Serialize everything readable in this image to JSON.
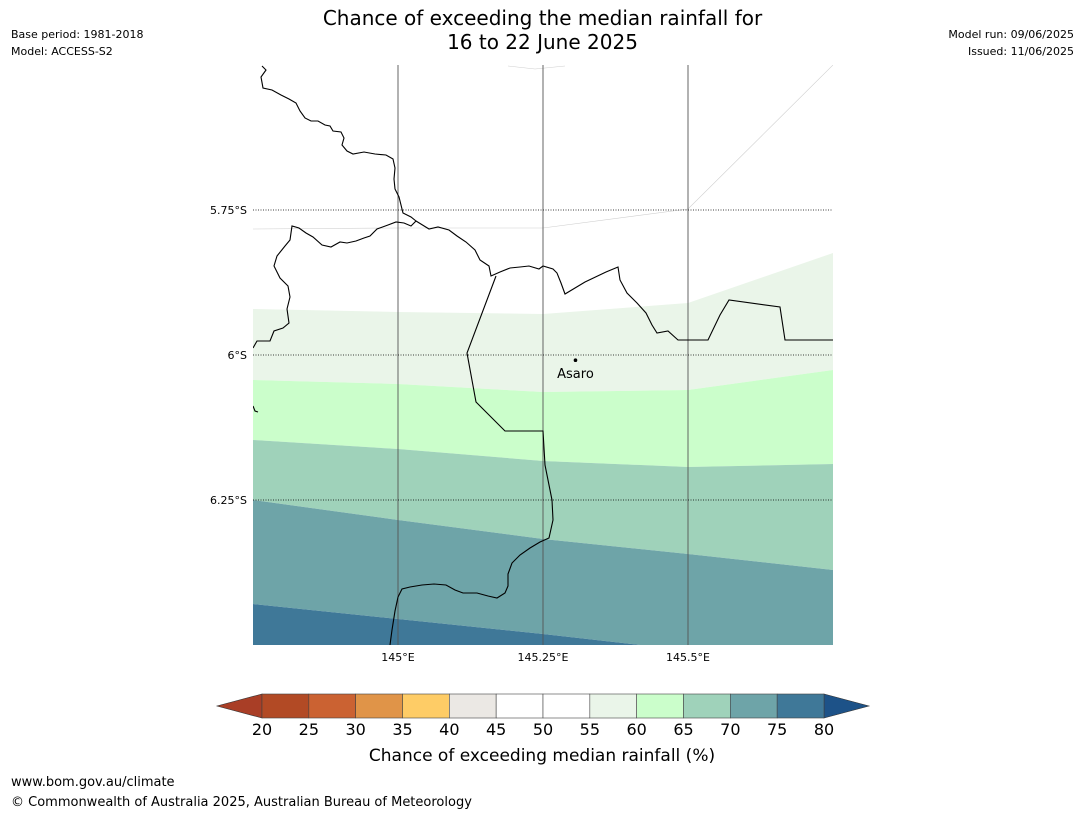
{
  "header": {
    "title_line1": "Chance of exceeding the median rainfall for",
    "title_line2": "16 to 22 June 2025",
    "base_period": "Base period: 1981-2018",
    "model": "Model: ACCESS-S2",
    "model_run": "Model run: 09/06/2025",
    "issued": "Issued: 11/06/2025"
  },
  "chart_data": {
    "type": "heatmap",
    "map_extent": {
      "lon": [
        144.75,
        145.75
      ],
      "lat": [
        -5.5,
        -6.5
      ]
    },
    "lat_ticks": [
      {
        "value": -5.75,
        "label": "5.75°S"
      },
      {
        "value": -6.0,
        "label": "6°S"
      },
      {
        "value": -6.25,
        "label": "6.25°S"
      }
    ],
    "lon_ticks": [
      {
        "value": 145.0,
        "label": "145°E"
      },
      {
        "value": 145.25,
        "label": "145.25°E"
      },
      {
        "value": 145.5,
        "label": "145.5°E"
      }
    ],
    "place": {
      "name": "Asaro",
      "lon": 145.306,
      "lat": -6.009
    },
    "colorbar": {
      "label": "Chance of exceeding median rainfall (%)",
      "ticks": [
        20,
        25,
        30,
        35,
        40,
        45,
        50,
        55,
        60,
        65,
        70,
        75,
        80
      ],
      "colors": [
        "#a93e26",
        "#b24a25",
        "#cb6232",
        "#e09448",
        "#fecc66",
        "#ebe8e4",
        "#ffffff",
        "#ffffff",
        "#eaf5e9",
        "#cbfecb",
        "#9fd2ba",
        "#6ea4a8",
        "#3f7898",
        "#1d5288"
      ],
      "extend": "both"
    },
    "bands": [
      {
        "range": "55-60",
        "color": "#eaf5e9"
      },
      {
        "range": "60-65",
        "color": "#cbfecb"
      },
      {
        "range": "65-70",
        "color": "#9fd2ba"
      },
      {
        "range": "70-75",
        "color": "#6ea4a8"
      },
      {
        "range": "75-80",
        "color": "#3f7898"
      }
    ]
  },
  "footer": {
    "url": "www.bom.gov.au/climate",
    "copyright": "© Commonwealth of Australia 2025, Australian Bureau of Meteorology"
  }
}
